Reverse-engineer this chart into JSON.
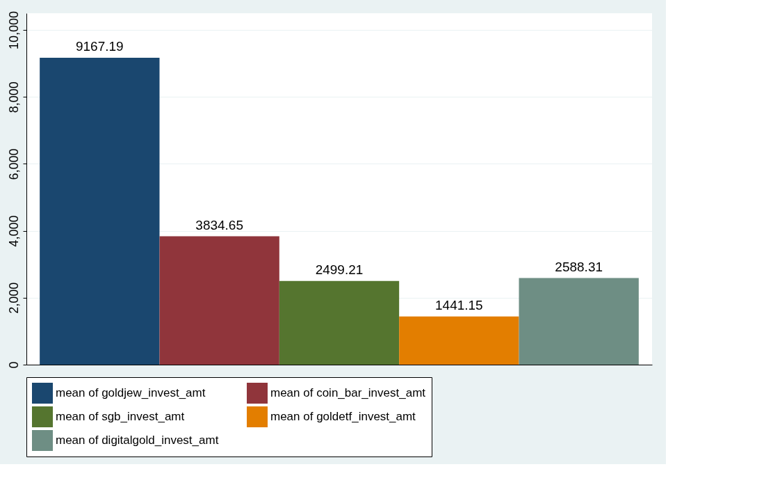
{
  "chart_data": {
    "type": "bar",
    "categories": [
      null
    ],
    "series": [
      {
        "name": "mean of goldjew_invest_amt",
        "color": "#1a476f",
        "values": [
          9167.19
        ]
      },
      {
        "name": "mean of coin_bar_invest_amt",
        "color": "#90353b",
        "values": [
          3834.65
        ]
      },
      {
        "name": "mean of sgb_invest_amt",
        "color": "#55752f",
        "values": [
          2499.21
        ]
      },
      {
        "name": "mean of goldetf_invest_amt",
        "color": "#e37e00",
        "values": [
          1441.15
        ]
      },
      {
        "name": "mean of digitalgold_invest_amt",
        "color": "#6e8e84",
        "values": [
          2588.31
        ]
      }
    ],
    "ylim": [
      0,
      10500
    ],
    "yticks": [
      0,
      {
        "value": 2000,
        "label": "2,000"
      },
      {
        "value": 4000,
        "label": "4,000"
      },
      {
        "value": 6000,
        "label": "6,000"
      },
      {
        "value": 8000,
        "label": "8,000"
      },
      {
        "value": 10000,
        "label": "10,000"
      }
    ],
    "grid": "y",
    "legend": "bottom",
    "data_labels": true
  }
}
